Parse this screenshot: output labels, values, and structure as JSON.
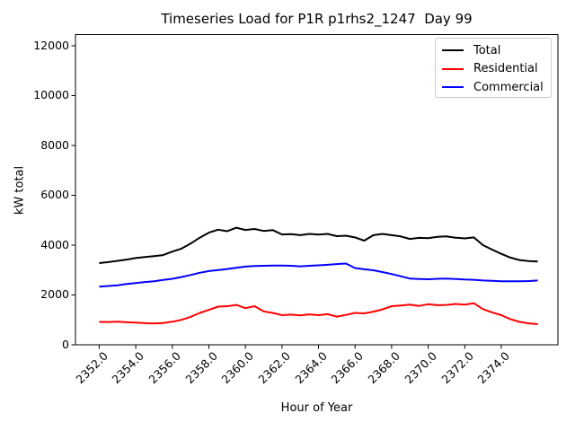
{
  "chart_data": {
    "type": "line",
    "title": "Timeseries Load for P1R p1rhs2_1247  Day 99",
    "xlabel": "Hour of Year",
    "ylabel": "kW total",
    "xlim": [
      2350.7,
      2377.1
    ],
    "ylim": [
      0,
      12450
    ],
    "grid": false,
    "background": "#ffffff",
    "spine_color": "#000000",
    "xticks": [
      2352,
      2354,
      2356,
      2358,
      2360,
      2362,
      2364,
      2366,
      2368,
      2370,
      2372,
      2374
    ],
    "xtick_labels": [
      "2352.0",
      "2354.0",
      "2356.0",
      "2358.0",
      "2360.0",
      "2362.0",
      "2364.0",
      "2366.0",
      "2368.0",
      "2370.0",
      "2372.0",
      "2374.0"
    ],
    "yticks": [
      0,
      2000,
      4000,
      6000,
      8000,
      10000,
      12000
    ],
    "ytick_labels": [
      "0",
      "2000",
      "4000",
      "6000",
      "8000",
      "10000",
      "12000"
    ],
    "legend": {
      "position": "upper right",
      "border_color": "#cccccc"
    },
    "x": [
      2352.0,
      2352.5,
      2353.0,
      2353.5,
      2354.0,
      2354.5,
      2355.0,
      2355.5,
      2356.0,
      2356.5,
      2357.0,
      2357.5,
      2358.0,
      2358.5,
      2359.0,
      2359.5,
      2360.0,
      2360.5,
      2361.0,
      2361.5,
      2362.0,
      2362.5,
      2363.0,
      2363.5,
      2364.0,
      2364.5,
      2365.0,
      2365.5,
      2366.0,
      2366.5,
      2367.0,
      2367.5,
      2368.0,
      2368.5,
      2369.0,
      2369.5,
      2370.0,
      2370.5,
      2371.0,
      2371.5,
      2372.0,
      2372.5,
      2373.0,
      2373.5,
      2374.0,
      2374.5,
      2375.0,
      2375.5,
      2376.0
    ],
    "series": [
      {
        "name": "Total",
        "color": "#000000",
        "values": [
          3280,
          3320,
          3370,
          3420,
          3480,
          3520,
          3560,
          3600,
          3740,
          3860,
          4060,
          4300,
          4500,
          4620,
          4560,
          4700,
          4610,
          4650,
          4570,
          4600,
          4430,
          4440,
          4400,
          4450,
          4420,
          4450,
          4360,
          4380,
          4310,
          4180,
          4400,
          4450,
          4400,
          4350,
          4250,
          4290,
          4280,
          4330,
          4350,
          4300,
          4270,
          4310,
          4000,
          3820,
          3650,
          3500,
          3400,
          3360,
          3340
        ]
      },
      {
        "name": "Residential",
        "color": "#ff0000",
        "values": [
          920,
          915,
          925,
          905,
          890,
          870,
          855,
          875,
          925,
          1000,
          1120,
          1280,
          1400,
          1530,
          1550,
          1600,
          1470,
          1550,
          1340,
          1280,
          1190,
          1210,
          1180,
          1220,
          1190,
          1230,
          1130,
          1200,
          1280,
          1260,
          1330,
          1420,
          1550,
          1580,
          1610,
          1560,
          1630,
          1590,
          1600,
          1640,
          1610,
          1670,
          1430,
          1300,
          1190,
          1030,
          920,
          860,
          830
        ]
      },
      {
        "name": "Commercial",
        "color": "#0000ff",
        "values": [
          2330,
          2360,
          2390,
          2440,
          2480,
          2520,
          2550,
          2600,
          2650,
          2720,
          2800,
          2890,
          2960,
          3000,
          3040,
          3090,
          3140,
          3160,
          3170,
          3180,
          3180,
          3170,
          3150,
          3170,
          3190,
          3210,
          3240,
          3260,
          3080,
          3030,
          2990,
          2920,
          2840,
          2750,
          2660,
          2640,
          2630,
          2650,
          2660,
          2640,
          2620,
          2610,
          2580,
          2570,
          2550,
          2550,
          2550,
          2560,
          2580
        ]
      }
    ]
  }
}
